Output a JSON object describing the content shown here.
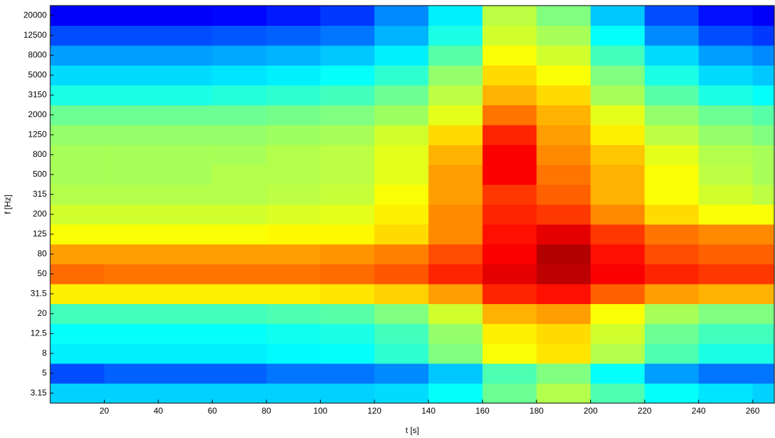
{
  "chart_data": {
    "type": "heatmap",
    "colormap": "jet",
    "zlim": [
      0,
      100
    ],
    "xlabel": "t [s]",
    "ylabel": "f [Hz]",
    "xbins": [
      0,
      20,
      40,
      60,
      80,
      100,
      120,
      140,
      160,
      180,
      200,
      220,
      240,
      260,
      268
    ],
    "xlim": [
      0,
      268
    ],
    "xticks": [
      20,
      40,
      60,
      80,
      100,
      120,
      140,
      160,
      180,
      200,
      220,
      240,
      260
    ],
    "categories": [
      "3.15",
      "5",
      "8",
      "12.5",
      "20",
      "31.5",
      "50",
      "80",
      "125",
      "200",
      "315",
      "500",
      "800",
      "1250",
      "2000",
      "3150",
      "5000",
      "8000",
      "12500",
      "20000"
    ],
    "z": [
      [
        33,
        33,
        33,
        33,
        33,
        33,
        34,
        38,
        48,
        55,
        45,
        38,
        35,
        33
      ],
      [
        20,
        22,
        22,
        22,
        24,
        24,
        26,
        32,
        45,
        50,
        38,
        28,
        24,
        24
      ],
      [
        36,
        36,
        36,
        36,
        37,
        38,
        42,
        50,
        62,
        65,
        55,
        45,
        40,
        40
      ],
      [
        38,
        38,
        38,
        38,
        39,
        40,
        44,
        52,
        64,
        66,
        58,
        48,
        44,
        44
      ],
      [
        44,
        44,
        44,
        44,
        45,
        46,
        50,
        58,
        70,
        72,
        62,
        54,
        50,
        50
      ],
      [
        64,
        64,
        64,
        64,
        64,
        65,
        67,
        72,
        84,
        86,
        78,
        72,
        70,
        70
      ],
      [
        77,
        76,
        76,
        76,
        76,
        77,
        79,
        84,
        90,
        94,
        88,
        84,
        82,
        82
      ],
      [
        72,
        72,
        72,
        72,
        72,
        73,
        75,
        80,
        88,
        95,
        86,
        80,
        78,
        78
      ],
      [
        62,
        62,
        62,
        62,
        63,
        63,
        66,
        74,
        86,
        90,
        82,
        76,
        74,
        74
      ],
      [
        58,
        58,
        58,
        58,
        59,
        60,
        64,
        74,
        84,
        82,
        74,
        66,
        62,
        62
      ],
      [
        55,
        55,
        55,
        55,
        56,
        57,
        62,
        72,
        82,
        78,
        70,
        62,
        58,
        56
      ],
      [
        54,
        54,
        54,
        55,
        55,
        56,
        60,
        72,
        88,
        76,
        70,
        62,
        56,
        54
      ],
      [
        54,
        54,
        54,
        54,
        55,
        56,
        60,
        70,
        88,
        74,
        68,
        60,
        55,
        54
      ],
      [
        52,
        52,
        52,
        52,
        53,
        54,
        58,
        66,
        84,
        72,
        64,
        56,
        52,
        50
      ],
      [
        48,
        48,
        48,
        48,
        49,
        50,
        53,
        60,
        76,
        70,
        60,
        52,
        48,
        46
      ],
      [
        40,
        40,
        40,
        41,
        42,
        44,
        48,
        56,
        70,
        66,
        54,
        46,
        40,
        38
      ],
      [
        34,
        34,
        34,
        35,
        36,
        38,
        42,
        52,
        66,
        62,
        50,
        40,
        34,
        32
      ],
      [
        28,
        28,
        28,
        29,
        30,
        32,
        36,
        46,
        62,
        58,
        44,
        34,
        28,
        26
      ],
      [
        20,
        20,
        20,
        21,
        22,
        24,
        30,
        40,
        58,
        54,
        38,
        26,
        20,
        18
      ],
      [
        12,
        12,
        12,
        13,
        15,
        18,
        26,
        36,
        56,
        50,
        32,
        20,
        14,
        12
      ]
    ]
  }
}
